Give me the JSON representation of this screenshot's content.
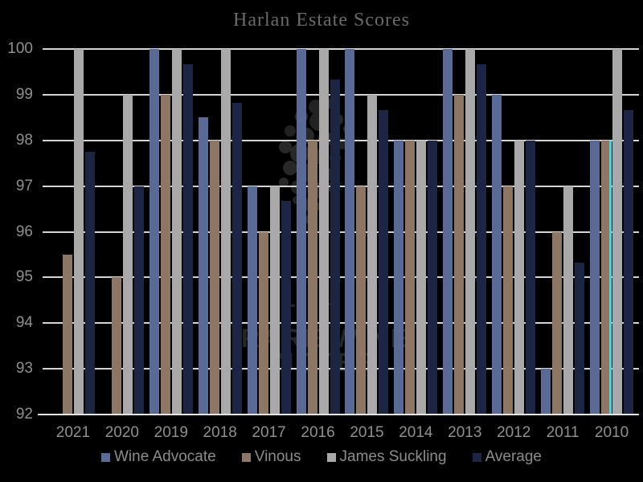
{
  "title": "Harlan Estate Scores",
  "watermark": {
    "line1": "RARE WINE",
    "line2": "NOTES"
  },
  "colors": {
    "background": "#000000",
    "gridline": "#d4d4d4",
    "axis_line": "#e6e6e6",
    "tick_label": "#8f8f8f",
    "title_text": "#6a6a6a",
    "legend_text": "#8c8c8c",
    "watermark": "#262626",
    "highlight_stripe": "#3fd6e0"
  },
  "chart_data": {
    "type": "bar",
    "title": "Harlan Estate Scores",
    "xlabel": "",
    "ylabel": "",
    "ylim": [
      92,
      100
    ],
    "yticks": [
      100,
      99,
      98,
      97,
      96,
      95,
      94,
      93,
      92
    ],
    "grid": true,
    "legend_position": "bottom",
    "categories": [
      "2021",
      "2020",
      "2019",
      "2018",
      "2017",
      "2016",
      "2015",
      "2014",
      "2013",
      "2012",
      "2011",
      "2010"
    ],
    "series": [
      {
        "name": "Wine Advocate",
        "color": "#5a6a97",
        "values": [
          null,
          null,
          100,
          98.5,
          97,
          100,
          100,
          98,
          100,
          99,
          93,
          98
        ]
      },
      {
        "name": "Vinous",
        "color": "#8e7665",
        "values": [
          95.5,
          95,
          99,
          98,
          96,
          98,
          97,
          98,
          99,
          97,
          96,
          98
        ]
      },
      {
        "name": "James Suckling",
        "color": "#a9a9aa",
        "values": [
          100,
          99,
          100,
          100,
          97,
          100,
          99,
          98,
          100,
          98,
          97,
          100
        ]
      },
      {
        "name": "Average",
        "color": "#1c2543",
        "values": [
          97.75,
          97,
          99.67,
          98.83,
          96.67,
          99.33,
          98.67,
          98,
          99.67,
          98,
          95.33,
          98.67
        ]
      }
    ],
    "highlight_stripe": {
      "category": "2010",
      "after_series": "Vinous",
      "value": 98,
      "color": "#3fd6e0"
    }
  }
}
